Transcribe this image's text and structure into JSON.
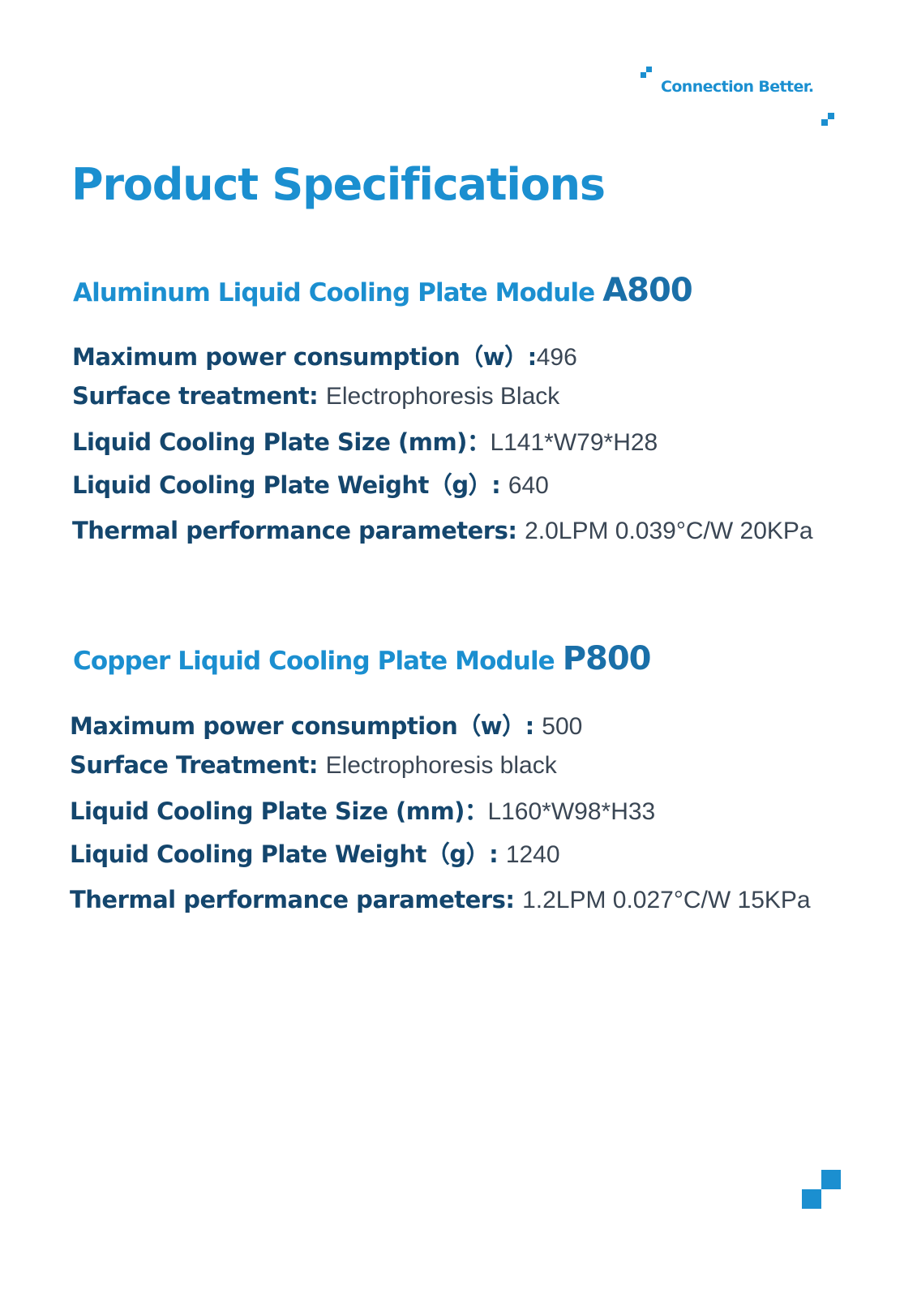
{
  "header": {
    "tagline": "Connection Better."
  },
  "title": "Product Specifications",
  "sections": [
    {
      "heading": "Aluminum Liquid Cooling Plate Module ",
      "model": "A800",
      "specs": [
        {
          "label": "Maximum power consumption（w）:",
          "value": "496"
        },
        {
          "label": "Surface treatment: ",
          "value": "Electrophoresis Black"
        },
        {
          "label": "Liquid Cooling Plate Size (mm)：",
          "value": "L141*W79*H28"
        },
        {
          "label": "Liquid Cooling Plate Weight（g）: ",
          "value": "640"
        },
        {
          "label": "Thermal performance parameters: ",
          "value": "2.0LPM 0.039°C/W 20KPa"
        }
      ]
    },
    {
      "heading": "Copper Liquid Cooling Plate Module ",
      "model": "P800",
      "specs": [
        {
          "label": "Maximum power consumption（w）: ",
          "value": "500"
        },
        {
          "label": "Surface Treatment: ",
          "value": "Electrophoresis black"
        },
        {
          "label": "Liquid Cooling Plate Size (mm)：",
          "value": "L160*W98*H33"
        },
        {
          "label": "Liquid Cooling Plate Weight（g）: ",
          "value": "1240"
        },
        {
          "label": "Thermal performance parameters: ",
          "value": "1.2LPM 0.027°C/W 15KPa"
        }
      ]
    }
  ],
  "colors": {
    "accent": "#1b8fd0",
    "label": "#14466d",
    "value": "#3a4654"
  }
}
